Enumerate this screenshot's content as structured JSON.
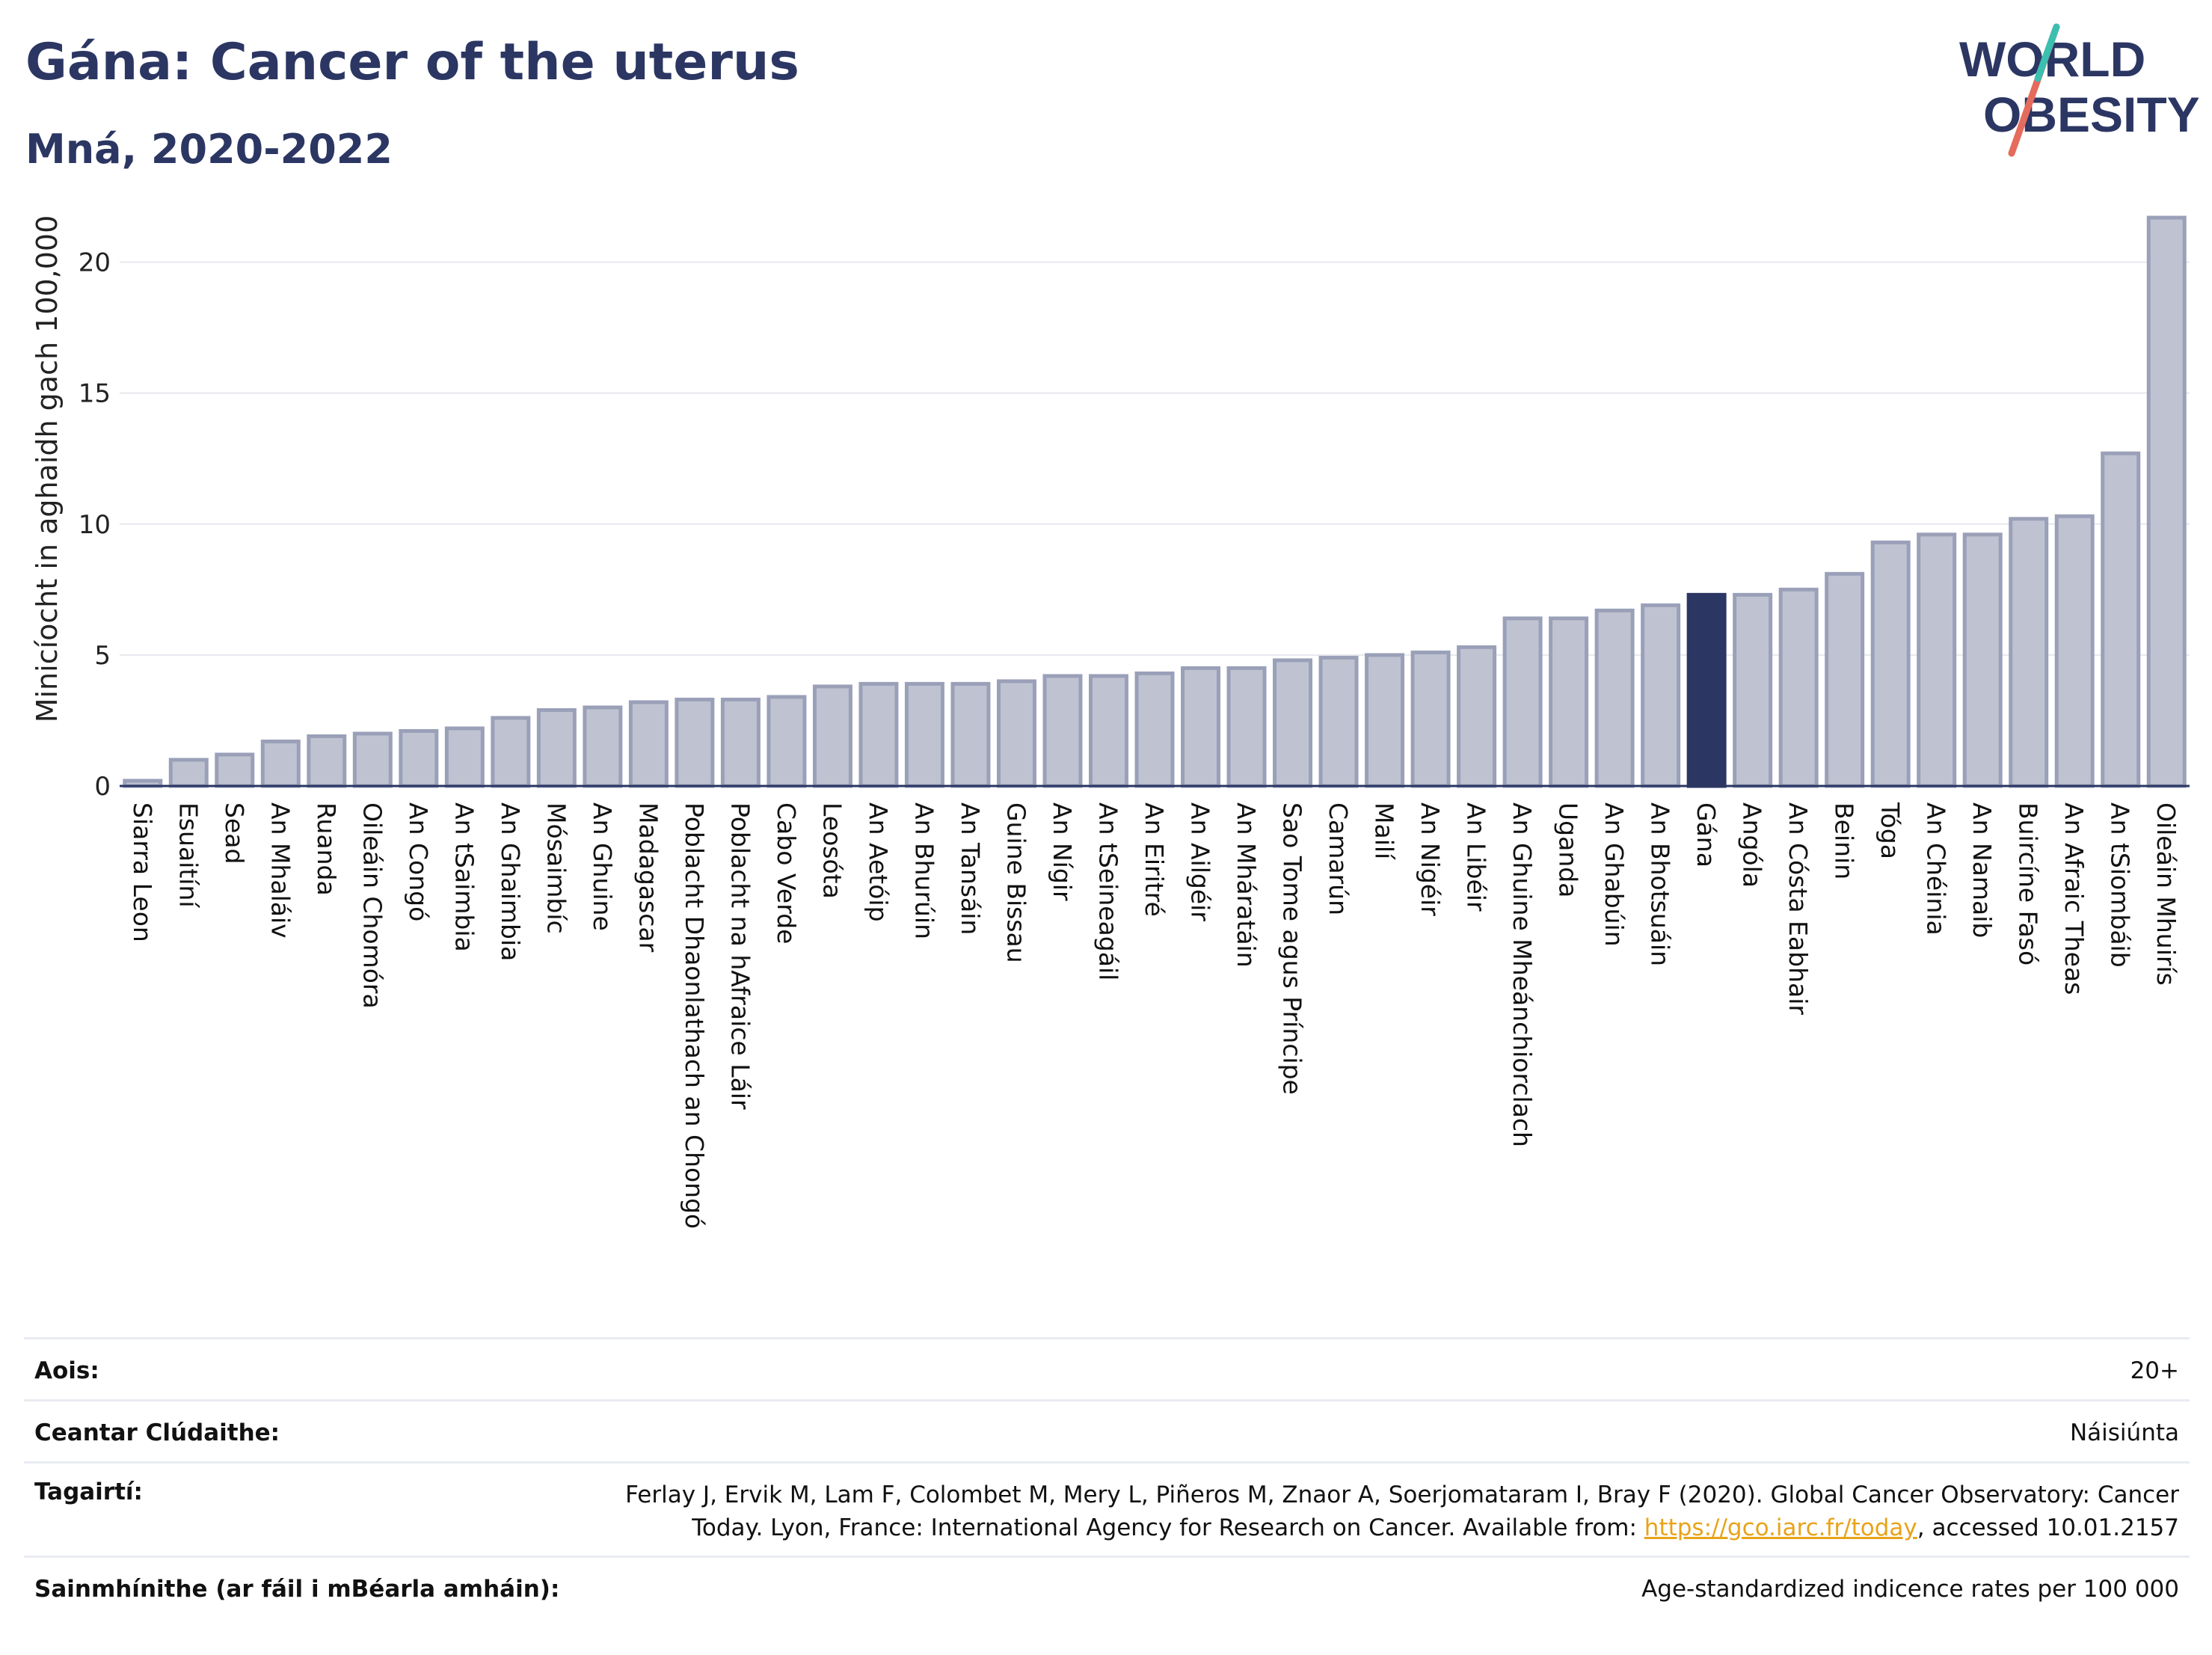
{
  "header": {
    "title": "Gána: Cancer of the uterus",
    "subtitle": "Mná, 2020-2022"
  },
  "logo": {
    "line1": "WORLD",
    "line2": "OBESITY"
  },
  "colors": {
    "bar": "#bfc3d1",
    "bar_border": "#9aa0b8",
    "highlight": "#2b3663",
    "text": "#2b3663",
    "grid": "#e6e8ee"
  },
  "chart_data": {
    "type": "bar",
    "ylabel": "Minicíocht in aghaidh gach 100,000",
    "ylim": [
      0,
      22.5
    ],
    "yticks": [
      0,
      5,
      10,
      15,
      20
    ],
    "highlight": "Gána",
    "grid": true,
    "categories": [
      "Siarra Leon",
      "Esuaitíní",
      "Sead",
      "An Mhaláiv",
      "Ruanda",
      "Oileáin Chomóra",
      "An Congó",
      "An tSaimbia",
      "An Ghaimbia",
      "Mósaimbíc",
      "An Ghuine",
      "Madagascar",
      "Poblacht Dhaonlathach an Chongó",
      "Poblacht na hAfraice Láir",
      "Cabo Verde",
      "Leosóta",
      "An Aetóip",
      "An Bhurúin",
      "An Tansáin",
      "Guine Bissau",
      "An Nígir",
      "An tSeineagáil",
      "An Eiritré",
      "An Ailgéir",
      "An Mháratáin",
      "Sao Tome agus Príncipe",
      "Camarún",
      "Mailí",
      "An Nigéir",
      "An Libéir",
      "An Ghuine Mheánchiorclach",
      "Uganda",
      "An Ghabúin",
      "An Bhotsuáin",
      "Gána",
      "Angóla",
      "An Cósta Eabhair",
      "Beinin",
      "Tóga",
      "An Chéinia",
      "An Namaib",
      "Buircíne Fasó",
      "An Afraic Theas",
      "An tSiombáib",
      "Oileáin Mhuirís"
    ],
    "values": [
      0.2,
      1.0,
      1.2,
      1.7,
      1.9,
      2.0,
      2.1,
      2.2,
      2.6,
      2.9,
      3.0,
      3.2,
      3.3,
      3.3,
      3.4,
      3.8,
      3.9,
      3.9,
      3.9,
      4.0,
      4.2,
      4.2,
      4.3,
      4.5,
      4.5,
      4.8,
      4.9,
      5.0,
      5.1,
      5.3,
      6.4,
      6.4,
      6.7,
      6.9,
      7.3,
      7.3,
      7.5,
      8.1,
      9.3,
      9.6,
      9.6,
      10.2,
      10.3,
      12.7,
      21.7
    ]
  },
  "info": {
    "rows": [
      {
        "label": "Aois:",
        "value": "20+"
      },
      {
        "label": "Ceantar Clúdaithe:",
        "value": "Náisiúnta"
      },
      {
        "label": "Tagairtí:",
        "value_line1": "Ferlay J, Ervik M, Lam F, Colombet M, Mery L, Piñeros M, Znaor A, Soerjomataram I, Bray F (2020). Global Cancer Observatory: Cancer",
        "value_line2_pre": "Today. Lyon, France: International Agency for Research on Cancer. Available from: ",
        "link": "https://gco.iarc.fr/today",
        "value_line2_post": ", accessed 10.01.2157"
      },
      {
        "label": "Sainmhínithe (ar fáil i mBéarla amháin):",
        "value": "Age-standardized indicence rates per 100 000"
      }
    ]
  }
}
